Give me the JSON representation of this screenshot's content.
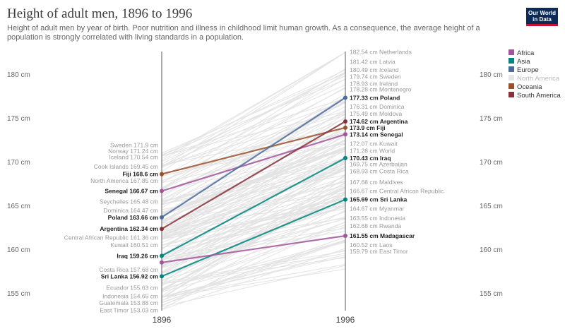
{
  "header": {
    "title": "Height of adult men, 1896 to 1996",
    "subtitle": "Height of adult men by year of birth. Poor nutrition and illness in childhood limit human growth. As a consequence, the average height of a population is strongly correlated with living standards in a population.",
    "logo_line1": "Our World",
    "logo_line2": "in Data"
  },
  "colors": {
    "Africa": "#a2559c",
    "Asia": "#00847e",
    "Europe": "#4c6a9c",
    "North America": "#e6e6e6",
    "Oceania": "#9a5129",
    "South America": "#883039",
    "background_line": "#e3e3e3",
    "axis": "#5b5b5b"
  },
  "chart_data": {
    "type": "slope",
    "x": [
      "1896",
      "1996"
    ],
    "unit": "cm",
    "ylim": [
      153,
      182.6
    ],
    "yticks": [
      155,
      160,
      165,
      170,
      175,
      180
    ],
    "ytick_labels": [
      "155 cm",
      "160 cm",
      "165 cm",
      "170 cm",
      "175 cm",
      "180 cm"
    ],
    "legend": [
      "Africa",
      "Asia",
      "Europe",
      "North America",
      "Oceania",
      "South America"
    ],
    "legend_position": "right",
    "highlighted": [
      {
        "name": "Fiji",
        "region": "Oceania",
        "v1896": 168.6,
        "v1996": 173.9
      },
      {
        "name": "Senegal",
        "region": "Africa",
        "v1896": 166.67,
        "v1996": 173.14
      },
      {
        "name": "Poland",
        "region": "Europe",
        "v1896": 163.66,
        "v1996": 177.33
      },
      {
        "name": "Argentina",
        "region": "South America",
        "v1896": 162.34,
        "v1996": 174.62
      },
      {
        "name": "Iraq",
        "region": "Asia",
        "v1896": 159.26,
        "v1996": 170.43
      },
      {
        "name": "Sri Lanka",
        "region": "Asia",
        "v1896": 156.92,
        "v1996": 165.69
      },
      {
        "name": "Madagascar",
        "region": "Africa",
        "v1896": 158.5,
        "v1996": 161.55
      }
    ],
    "labels_1896": [
      {
        "name": "Sweden",
        "value": 171.9,
        "bold": false
      },
      {
        "name": "Norway",
        "value": 171.24,
        "bold": false
      },
      {
        "name": "Iceland",
        "value": 170.54,
        "bold": false
      },
      {
        "name": "Cook Islands",
        "value": 169.45,
        "bold": false
      },
      {
        "name": "Fiji",
        "value": 168.6,
        "bold": true
      },
      {
        "name": "North America",
        "value": 167.85,
        "bold": false
      },
      {
        "name": "Senegal",
        "value": 166.67,
        "bold": true
      },
      {
        "name": "Seychelles",
        "value": 165.48,
        "bold": false
      },
      {
        "name": "Dominica",
        "value": 164.47,
        "bold": false
      },
      {
        "name": "Poland",
        "value": 163.66,
        "bold": true
      },
      {
        "name": "Argentina",
        "value": 162.34,
        "bold": true
      },
      {
        "name": "Central African Republic",
        "value": 161.36,
        "bold": false
      },
      {
        "name": "Kuwait",
        "value": 160.51,
        "bold": false
      },
      {
        "name": "Iraq",
        "value": 159.26,
        "bold": true
      },
      {
        "name": "Costa Rica",
        "value": 157.68,
        "bold": false
      },
      {
        "name": "Sri Lanka",
        "value": 156.92,
        "bold": true
      },
      {
        "name": "Ecuador",
        "value": 155.63,
        "bold": false
      },
      {
        "name": "Indonesia",
        "value": 154.65,
        "bold": false
      },
      {
        "name": "Guatemala",
        "value": 153.88,
        "bold": false
      },
      {
        "name": "East Timor",
        "value": 153.03,
        "bold": false
      }
    ],
    "labels_1996": [
      {
        "name": "Netherlands",
        "value": 182.54,
        "bold": false
      },
      {
        "name": "Latvia",
        "value": 181.42,
        "bold": false
      },
      {
        "name": "Iceland",
        "value": 180.49,
        "bold": false
      },
      {
        "name": "Sweden",
        "value": 179.74,
        "bold": false
      },
      {
        "name": "Ireland",
        "value": 178.93,
        "bold": false
      },
      {
        "name": "Montenegro",
        "value": 178.28,
        "bold": false
      },
      {
        "name": "Poland",
        "value": 177.33,
        "bold": true
      },
      {
        "name": "Dominica",
        "value": 176.31,
        "bold": false
      },
      {
        "name": "Moldova",
        "value": 175.49,
        "bold": false
      },
      {
        "name": "Argentina",
        "value": 174.62,
        "bold": true
      },
      {
        "name": "Fiji",
        "value": 173.9,
        "bold": true
      },
      {
        "name": "Senegal",
        "value": 173.14,
        "bold": true
      },
      {
        "name": "Kuwait",
        "value": 172.07,
        "bold": false
      },
      {
        "name": "World",
        "value": 171.28,
        "bold": false
      },
      {
        "name": "Iraq",
        "value": 170.43,
        "bold": true
      },
      {
        "name": "Azerbaijan",
        "value": 169.75,
        "bold": false
      },
      {
        "name": "Costa Rica",
        "value": 168.93,
        "bold": false
      },
      {
        "name": "Maldives",
        "value": 167.68,
        "bold": false
      },
      {
        "name": "Central African Republic",
        "value": 166.67,
        "bold": false
      },
      {
        "name": "Sri Lanka",
        "value": 165.69,
        "bold": true
      },
      {
        "name": "Myanmar",
        "value": 164.67,
        "bold": false
      },
      {
        "name": "Indonesia",
        "value": 163.55,
        "bold": false
      },
      {
        "name": "Rwanda",
        "value": 162.68,
        "bold": false
      },
      {
        "name": "Madagascar",
        "value": 161.55,
        "bold": true
      },
      {
        "name": "Laos",
        "value": 160.52,
        "bold": false
      },
      {
        "name": "East Timor",
        "value": 159.79,
        "bold": false
      }
    ]
  }
}
